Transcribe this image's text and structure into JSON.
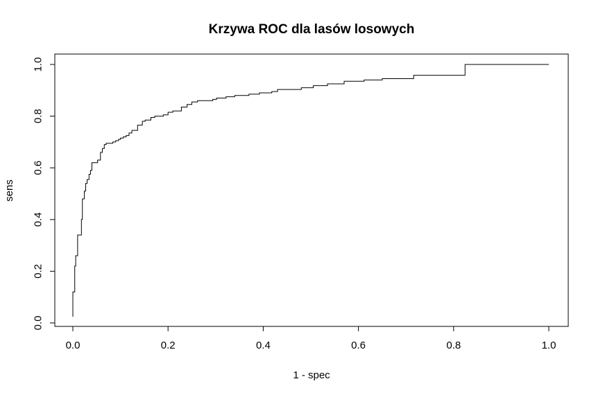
{
  "chart_data": {
    "type": "line",
    "title": "Krzywa ROC dla lasów losowych",
    "xlabel": "1 - spec",
    "ylabel": "sens",
    "xlim": [
      0,
      1
    ],
    "ylim": [
      0,
      1
    ],
    "grid": false,
    "legend": "none",
    "x_ticks": [
      "0.0",
      "0.2",
      "0.4",
      "0.6",
      "0.8",
      "1.0"
    ],
    "y_ticks": [
      "0.0",
      "0.2",
      "0.4",
      "0.6",
      "0.8",
      "1.0"
    ],
    "series": [
      {
        "step": true,
        "color": "#000000",
        "points": [
          [
            0.0,
            0.024
          ],
          [
            0.0,
            0.12
          ],
          [
            0.004,
            0.12
          ],
          [
            0.004,
            0.22
          ],
          [
            0.006,
            0.22
          ],
          [
            0.006,
            0.26
          ],
          [
            0.01,
            0.26
          ],
          [
            0.01,
            0.34
          ],
          [
            0.018,
            0.34
          ],
          [
            0.018,
            0.4
          ],
          [
            0.02,
            0.4
          ],
          [
            0.02,
            0.48
          ],
          [
            0.024,
            0.48
          ],
          [
            0.024,
            0.51
          ],
          [
            0.027,
            0.51
          ],
          [
            0.027,
            0.54
          ],
          [
            0.03,
            0.54
          ],
          [
            0.03,
            0.555
          ],
          [
            0.034,
            0.555
          ],
          [
            0.034,
            0.575
          ],
          [
            0.037,
            0.575
          ],
          [
            0.037,
            0.59
          ],
          [
            0.04,
            0.59
          ],
          [
            0.04,
            0.62
          ],
          [
            0.052,
            0.62
          ],
          [
            0.052,
            0.63
          ],
          [
            0.058,
            0.63
          ],
          [
            0.058,
            0.66
          ],
          [
            0.062,
            0.66
          ],
          [
            0.062,
            0.675
          ],
          [
            0.066,
            0.675
          ],
          [
            0.066,
            0.69
          ],
          [
            0.07,
            0.69
          ],
          [
            0.07,
            0.695
          ],
          [
            0.084,
            0.695
          ],
          [
            0.084,
            0.7
          ],
          [
            0.09,
            0.7
          ],
          [
            0.09,
            0.705
          ],
          [
            0.096,
            0.705
          ],
          [
            0.096,
            0.71
          ],
          [
            0.1,
            0.71
          ],
          [
            0.1,
            0.715
          ],
          [
            0.106,
            0.715
          ],
          [
            0.106,
            0.72
          ],
          [
            0.112,
            0.72
          ],
          [
            0.112,
            0.725
          ],
          [
            0.118,
            0.725
          ],
          [
            0.118,
            0.735
          ],
          [
            0.124,
            0.735
          ],
          [
            0.124,
            0.745
          ],
          [
            0.136,
            0.745
          ],
          [
            0.136,
            0.765
          ],
          [
            0.146,
            0.765
          ],
          [
            0.146,
            0.78
          ],
          [
            0.152,
            0.78
          ],
          [
            0.152,
            0.785
          ],
          [
            0.164,
            0.785
          ],
          [
            0.164,
            0.795
          ],
          [
            0.172,
            0.795
          ],
          [
            0.172,
            0.8
          ],
          [
            0.19,
            0.8
          ],
          [
            0.19,
            0.805
          ],
          [
            0.2,
            0.805
          ],
          [
            0.2,
            0.815
          ],
          [
            0.21,
            0.815
          ],
          [
            0.21,
            0.82
          ],
          [
            0.228,
            0.82
          ],
          [
            0.228,
            0.835
          ],
          [
            0.24,
            0.835
          ],
          [
            0.24,
            0.845
          ],
          [
            0.25,
            0.845
          ],
          [
            0.25,
            0.855
          ],
          [
            0.262,
            0.855
          ],
          [
            0.262,
            0.86
          ],
          [
            0.294,
            0.86
          ],
          [
            0.294,
            0.865
          ],
          [
            0.302,
            0.865
          ],
          [
            0.302,
            0.87
          ],
          [
            0.322,
            0.87
          ],
          [
            0.322,
            0.875
          ],
          [
            0.34,
            0.875
          ],
          [
            0.34,
            0.88
          ],
          [
            0.37,
            0.88
          ],
          [
            0.37,
            0.885
          ],
          [
            0.392,
            0.885
          ],
          [
            0.392,
            0.89
          ],
          [
            0.418,
            0.89
          ],
          [
            0.418,
            0.895
          ],
          [
            0.43,
            0.895
          ],
          [
            0.43,
            0.903
          ],
          [
            0.48,
            0.903
          ],
          [
            0.48,
            0.91
          ],
          [
            0.505,
            0.91
          ],
          [
            0.505,
            0.918
          ],
          [
            0.535,
            0.918
          ],
          [
            0.535,
            0.925
          ],
          [
            0.57,
            0.925
          ],
          [
            0.57,
            0.935
          ],
          [
            0.612,
            0.935
          ],
          [
            0.612,
            0.94
          ],
          [
            0.65,
            0.94
          ],
          [
            0.65,
            0.945
          ],
          [
            0.716,
            0.945
          ],
          [
            0.716,
            0.958
          ],
          [
            0.824,
            0.958
          ],
          [
            0.824,
            1.0
          ],
          [
            1.0,
            1.0
          ]
        ]
      }
    ]
  }
}
